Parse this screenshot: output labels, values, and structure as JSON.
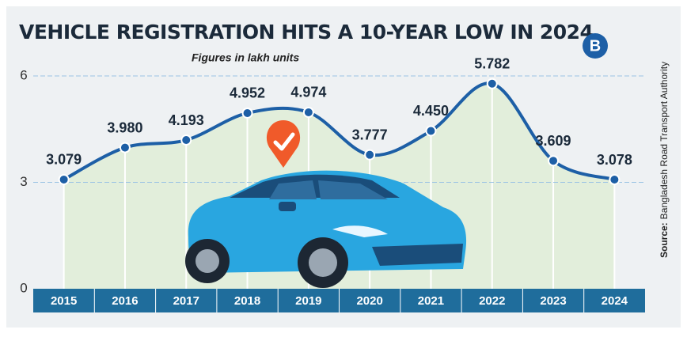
{
  "chart_data": {
    "type": "line",
    "title": "VEHICLE REGISTRATION HITS A 10-YEAR LOW IN 2024",
    "subtitle": "Figures in lakh units",
    "source_label": "Source:",
    "source": "Bangladesh Road Transport Authority",
    "logo": "B",
    "categories": [
      "2015",
      "2016",
      "2017",
      "2018",
      "2019",
      "2020",
      "2021",
      "2022",
      "2023",
      "2024"
    ],
    "values": [
      3.079,
      3.98,
      4.193,
      4.952,
      4.974,
      3.777,
      4.45,
      5.782,
      3.609,
      3.078
    ],
    "value_labels": [
      "3.079",
      "3.980",
      "4.193",
      "4.952",
      "4.974",
      "3.777",
      "4.450",
      "5.782",
      "3.609",
      "3.078"
    ],
    "color": "#1d5fa6",
    "area_color": "#e2eedb",
    "ylim": [
      0,
      6
    ],
    "yticks": [
      0,
      3,
      6
    ],
    "grid": true
  }
}
